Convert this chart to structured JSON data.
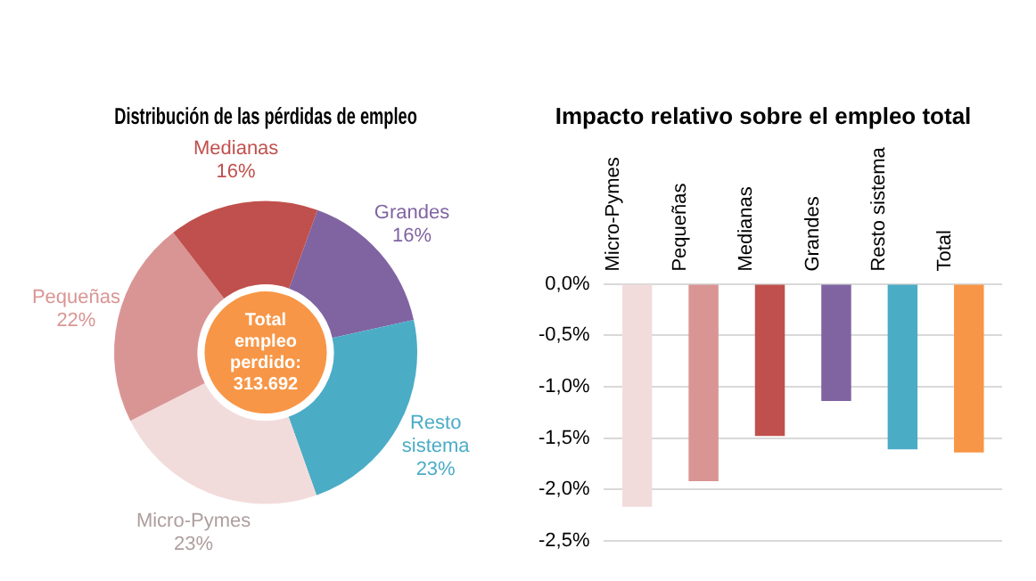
{
  "chart_data": [
    {
      "type": "donut",
      "title": "Distribución de las pérdidas de empleo",
      "categories": [
        "Grandes",
        "Resto sistema",
        "Micro-Pymes",
        "Pequeñas",
        "Medianas"
      ],
      "values": [
        16,
        23,
        23,
        22,
        16
      ],
      "colors": [
        "#8064a2",
        "#4bacc6",
        "#f2dcdb",
        "#d99594",
        "#c0504d"
      ],
      "value_labels": [
        "16%",
        "23%",
        "23%",
        "22%",
        "16%"
      ],
      "annotations": [
        "Total empleo perdido: 313.692"
      ],
      "legend": false
    },
    {
      "type": "bar",
      "title": "Impacto relativo sobre el empleo total",
      "categories": [
        "Micro-Pymes",
        "Pequeñas",
        "Medianas",
        "Grandes",
        "Resto sistema",
        "Total"
      ],
      "values": [
        -2.17,
        -1.92,
        -1.48,
        -1.14,
        -1.61,
        -1.64
      ],
      "colors": [
        "#f2dcdb",
        "#d99594",
        "#c0504d",
        "#8064a2",
        "#4bacc6",
        "#f79646"
      ],
      "ylim": [
        -2.5,
        0
      ],
      "yticks": [
        {
          "value": 0,
          "label": "0,0%"
        },
        {
          "value": -0.5,
          "label": "-0,5%"
        },
        {
          "value": -1,
          "label": "-1,0%"
        },
        {
          "value": -1.5,
          "label": "-1,5%"
        },
        {
          "value": -2,
          "label": "-2,0%"
        },
        {
          "value": -2.5,
          "label": "-2,5%"
        }
      ],
      "grid": "y",
      "legend": false
    }
  ]
}
